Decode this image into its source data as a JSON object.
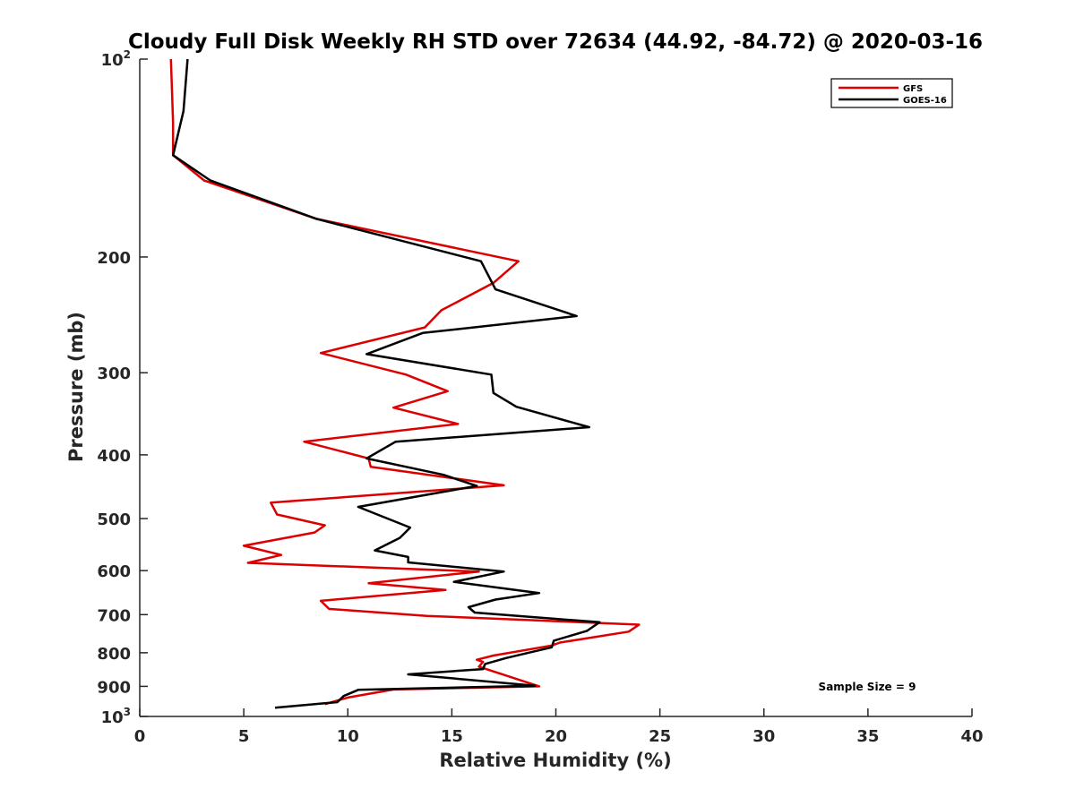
{
  "chart_data": {
    "type": "line",
    "title": "Cloudy Full Disk Weekly RH STD over 72634 (44.92, -84.72) @ 2020-03-16",
    "xlabel": "Relative Humidity (%)",
    "ylabel": "Pressure (mb)",
    "xlim": [
      0,
      40
    ],
    "ylim": [
      100,
      1000
    ],
    "yscale": "log",
    "y_reversed": true,
    "x_ticks": [
      "0",
      "5",
      "10",
      "15",
      "20",
      "25",
      "30",
      "35",
      "40"
    ],
    "y_ticks": [
      {
        "value": 100,
        "base": "10",
        "exp": "2"
      },
      {
        "value": 200,
        "label": "200"
      },
      {
        "value": 300,
        "label": "300"
      },
      {
        "value": 400,
        "label": "400"
      },
      {
        "value": 500,
        "label": "500"
      },
      {
        "value": 600,
        "label": "600"
      },
      {
        "value": 700,
        "label": "700"
      },
      {
        "value": 800,
        "label": "800"
      },
      {
        "value": 900,
        "label": "900"
      },
      {
        "value": 1000,
        "base": "10",
        "exp": "3"
      }
    ],
    "legend_position": "top-right",
    "grid": false,
    "annotation": "Sample Size = 9",
    "series": [
      {
        "name": "GFS",
        "color": "#dd0000",
        "points": [
          [
            1.5,
            100
          ],
          [
            1.6,
            125
          ],
          [
            1.6,
            140
          ],
          [
            3.1,
            153
          ],
          [
            8.5,
            175
          ],
          [
            18.2,
            203
          ],
          [
            17,
            219
          ],
          [
            14.5,
            241
          ],
          [
            13.7,
            256
          ],
          [
            8.7,
            280
          ],
          [
            12.8,
            302
          ],
          [
            14.8,
            320
          ],
          [
            12.2,
            339
          ],
          [
            15.3,
            359
          ],
          [
            7.9,
            382
          ],
          [
            11,
            405
          ],
          [
            11.1,
            417
          ],
          [
            17.5,
            445
          ],
          [
            6.3,
            473
          ],
          [
            6.6,
            493
          ],
          [
            8.9,
            512
          ],
          [
            8.4,
            525
          ],
          [
            5,
            550
          ],
          [
            6.8,
            568
          ],
          [
            5.2,
            584
          ],
          [
            16.3,
            602
          ],
          [
            11,
            627
          ],
          [
            14.7,
            642
          ],
          [
            8.7,
            667
          ],
          [
            9.1,
            686
          ],
          [
            13.8,
            703
          ],
          [
            24,
            725
          ],
          [
            23.5,
            743
          ],
          [
            20.2,
            772
          ],
          [
            19.8,
            780
          ],
          [
            17,
            808
          ],
          [
            16.2,
            820
          ],
          [
            16.5,
            826
          ],
          [
            16.3,
            840
          ],
          [
            19.2,
            900
          ],
          [
            12.2,
            910
          ],
          [
            10,
            936
          ],
          [
            8.9,
            958
          ]
        ]
      },
      {
        "name": "GOES-16",
        "color": "#000000",
        "points": [
          [
            2.3,
            100
          ],
          [
            2.1,
            120
          ],
          [
            1.6,
            140
          ],
          [
            3.4,
            153
          ],
          [
            8.5,
            175
          ],
          [
            16.4,
            203
          ],
          [
            17.1,
            224
          ],
          [
            21,
            246
          ],
          [
            13.6,
            261
          ],
          [
            10.9,
            281
          ],
          [
            16.9,
            302
          ],
          [
            17,
            322
          ],
          [
            18.1,
            338
          ],
          [
            21.6,
            363
          ],
          [
            12.3,
            382
          ],
          [
            10.9,
            405
          ],
          [
            14.6,
            429
          ],
          [
            16.2,
            446
          ],
          [
            10.5,
            480
          ],
          [
            13,
            516
          ],
          [
            12.5,
            535
          ],
          [
            11.3,
            559
          ],
          [
            12.9,
            572
          ],
          [
            12.9,
            583
          ],
          [
            17.5,
            602
          ],
          [
            15.1,
            624
          ],
          [
            19.2,
            649
          ],
          [
            17.1,
            664
          ],
          [
            15.8,
            682
          ],
          [
            16.1,
            695
          ],
          [
            22.1,
            719
          ],
          [
            21.5,
            741
          ],
          [
            19.9,
            767
          ],
          [
            19.8,
            785
          ],
          [
            17.6,
            815
          ],
          [
            16.6,
            832
          ],
          [
            16.5,
            847
          ],
          [
            12.9,
            863
          ],
          [
            19,
            898
          ],
          [
            10.5,
            911
          ],
          [
            9.8,
            931
          ],
          [
            9.5,
            951
          ],
          [
            6.5,
            970
          ]
        ]
      }
    ]
  }
}
